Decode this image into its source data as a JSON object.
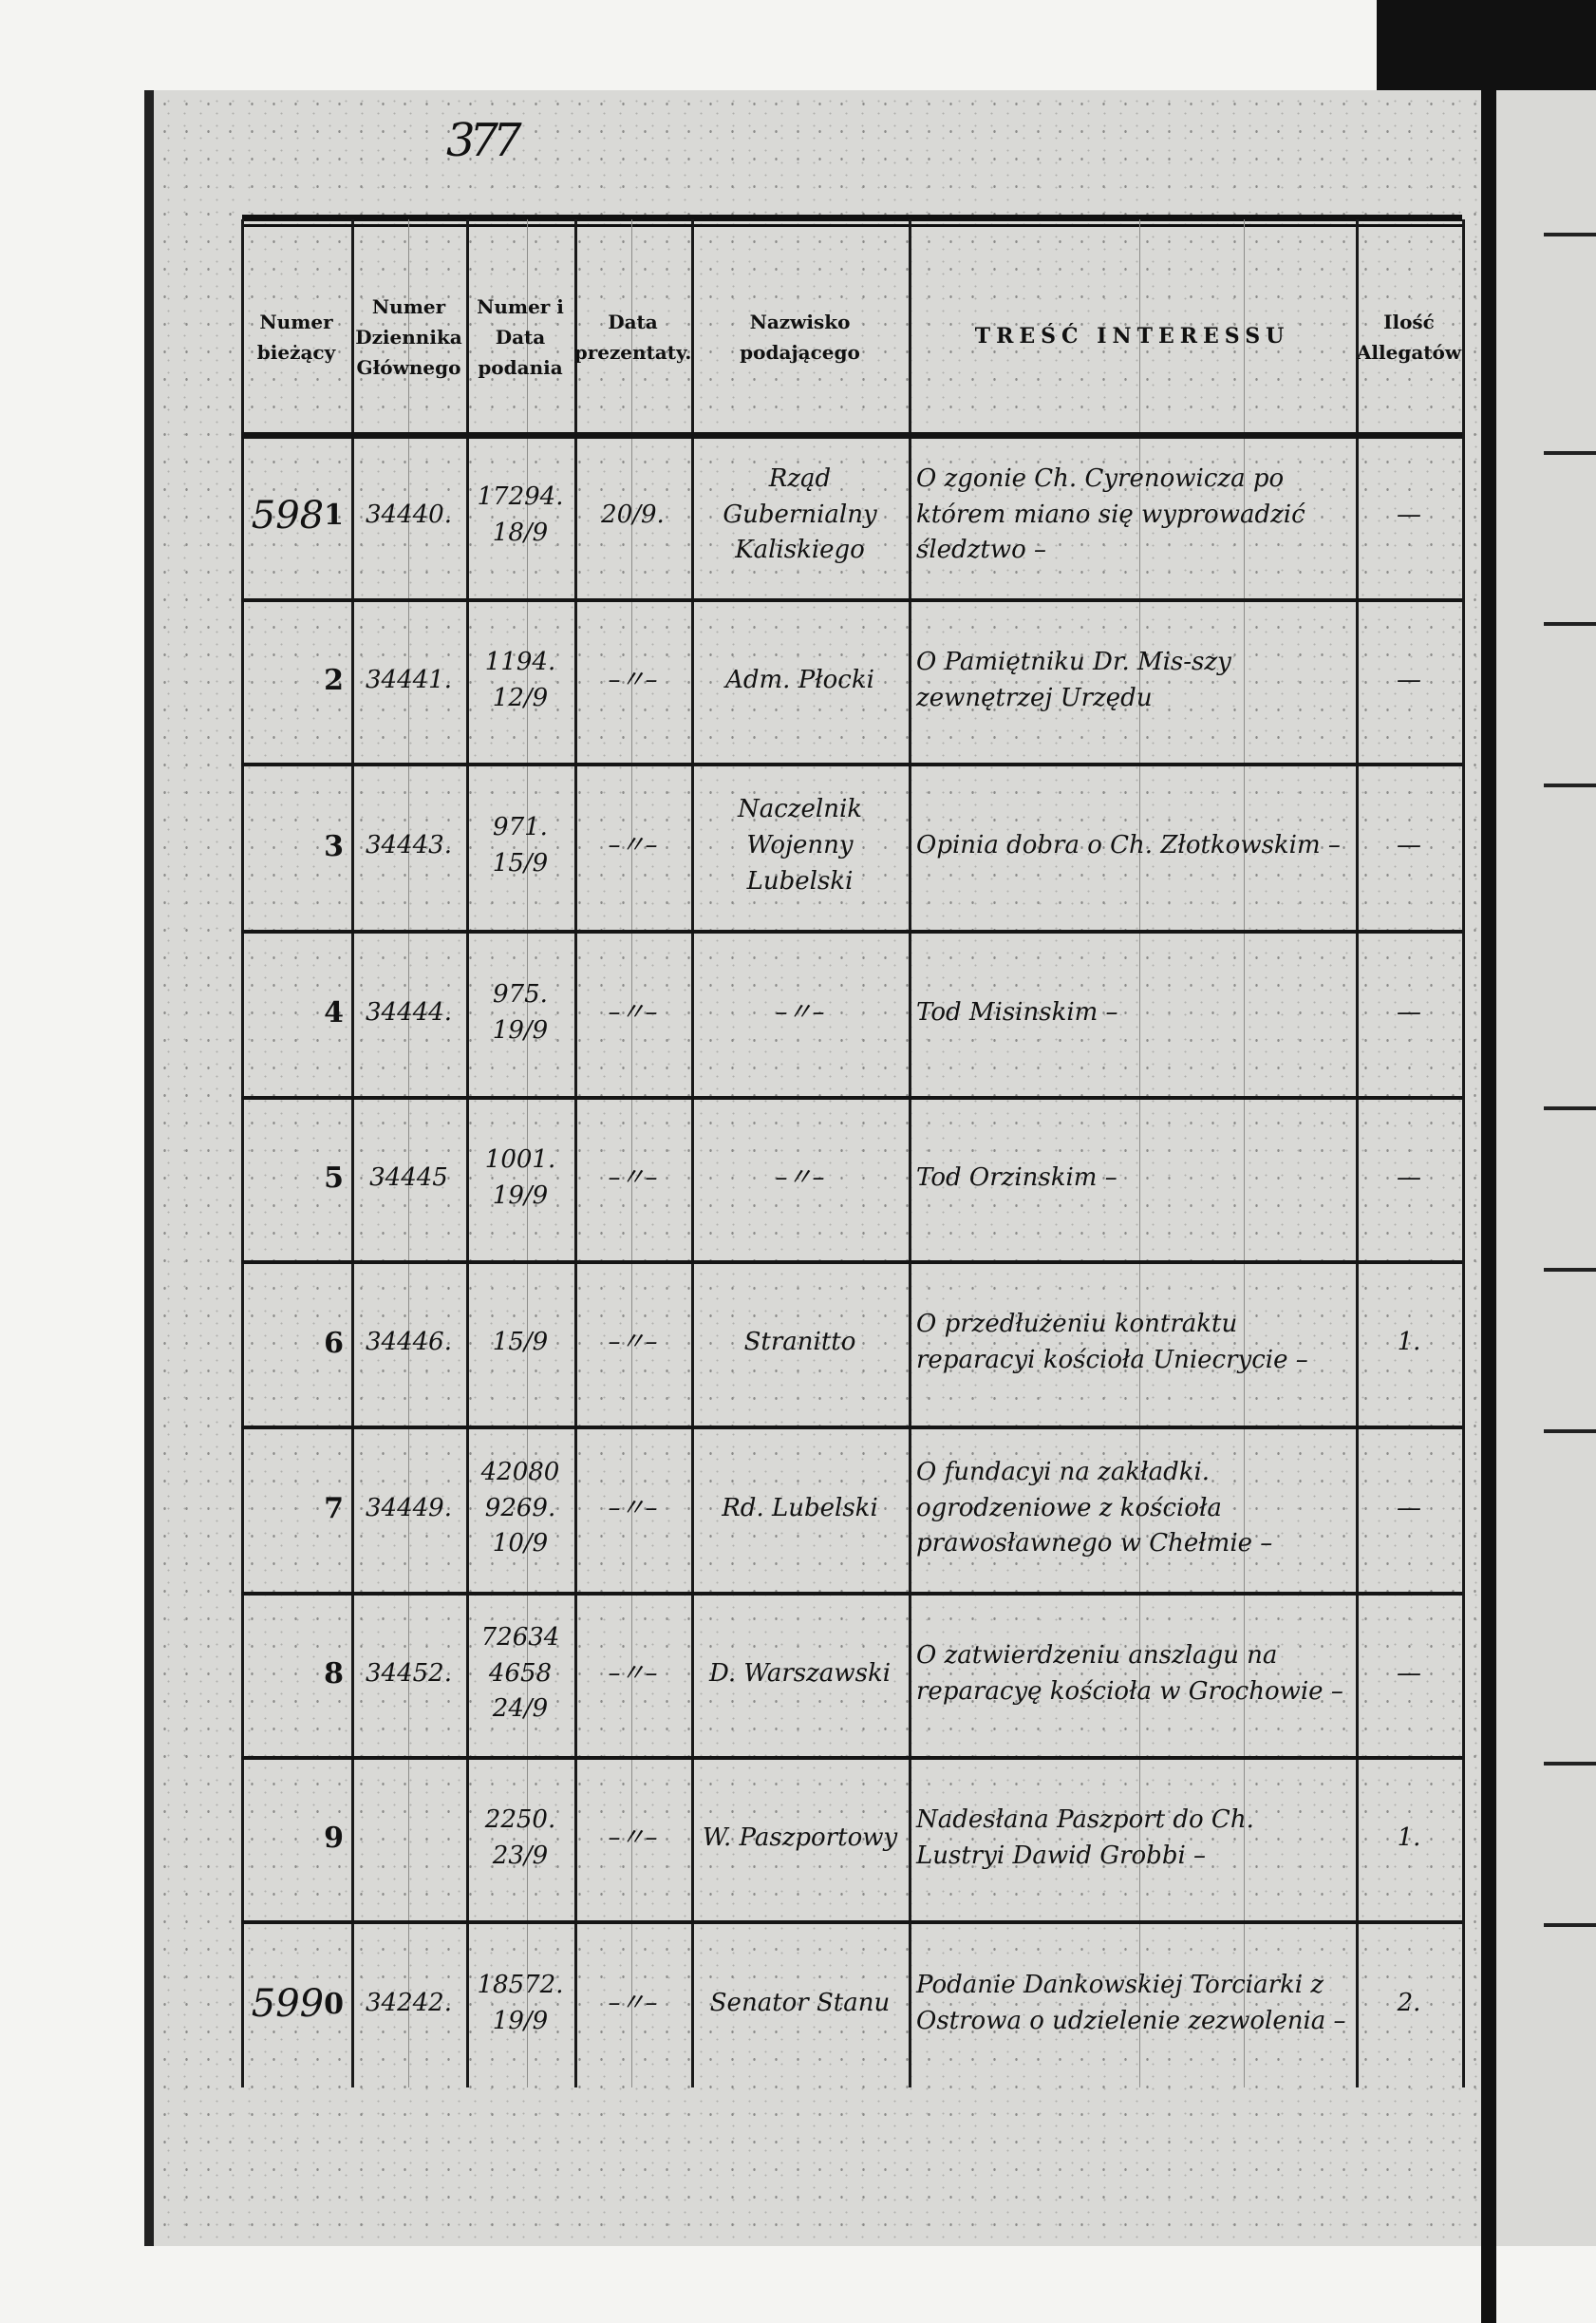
{
  "folio": "377",
  "headers": {
    "numer_biezacy": "Numer bieżący",
    "numer_dziennika": "Numer Dziennika Głównego",
    "numer_data": "Numer i Data podania",
    "data_prezentaty": "Data prezentaty.",
    "nazwisko": "Nazwisko podającego",
    "tresc": "TREŚĆ INTERESSU",
    "ilosc": "Ilość Allegatów"
  },
  "rows": [
    {
      "prefix": "598",
      "num": "1",
      "dziennik": "34440.",
      "numer_data": "17294. 18/9",
      "prezentata": "20/9.",
      "nazwisko": "Rząd Gubernialny Kaliskiego",
      "tresc": "O zgonie Ch. Cyrenowicza po którem miano się wyprowadzić śledztwo –",
      "ilosc": "—"
    },
    {
      "prefix": "",
      "num": "2",
      "dziennik": "34441.",
      "numer_data": "1194. 12/9",
      "prezentata": "–〃–",
      "nazwisko": "Adm. Płocki",
      "tresc": "O Pamiętniku Dr. Mis-szy zewnętrzej Urzędu",
      "ilosc": "—"
    },
    {
      "prefix": "",
      "num": "3",
      "dziennik": "34443.",
      "numer_data": "971. 15/9",
      "prezentata": "–〃–",
      "nazwisko": "Naczelnik Wojenny Lubelski",
      "tresc": "Opinia dobra o Ch. Złotkowskim –",
      "ilosc": "—"
    },
    {
      "prefix": "",
      "num": "4",
      "dziennik": "34444.",
      "numer_data": "975. 19/9",
      "prezentata": "–〃–",
      "nazwisko": "–〃–",
      "tresc": "Tod Misinskim –",
      "ilosc": "—"
    },
    {
      "prefix": "",
      "num": "5",
      "dziennik": "34445",
      "numer_data": "1001. 19/9",
      "prezentata": "–〃–",
      "nazwisko": "–〃–",
      "tresc": "Tod Orzinskim –",
      "ilosc": "—"
    },
    {
      "prefix": "",
      "num": "6",
      "dziennik": "34446.",
      "numer_data": "15/9",
      "prezentata": "–〃–",
      "nazwisko": "Stranitto",
      "tresc": "O przedłużeniu kontraktu reparacyi kościoła Uniecrycie –",
      "ilosc": "1."
    },
    {
      "prefix": "",
      "num": "7",
      "dziennik": "34449.",
      "numer_data": "42080 9269. 10/9",
      "prezentata": "–〃–",
      "nazwisko": "Rd. Lubelski",
      "tresc": "O fundacyi na zakładki. ogrodzeniowe z kościoła prawosławnego w Chełmie –",
      "ilosc": "—"
    },
    {
      "prefix": "",
      "num": "8",
      "dziennik": "34452.",
      "numer_data": "72634 4658 24/9",
      "prezentata": "–〃–",
      "nazwisko": "D. Warszawski",
      "tresc": "O zatwierdzeniu anszlagu na reparacyę kościoła w Grochowie –",
      "ilosc": "—"
    },
    {
      "prefix": "",
      "num": "9",
      "dziennik": "",
      "numer_data": "2250. 23/9",
      "prezentata": "–〃–",
      "nazwisko": "W. Paszportowy",
      "tresc": "Nadesłana Paszport do Ch. Lustryi Dawid Grobbi –",
      "ilosc": "1."
    },
    {
      "prefix": "599",
      "num": "0",
      "dziennik": "34242.",
      "numer_data": "18572. 19/9",
      "prezentata": "–〃–",
      "nazwisko": "Senator Stanu",
      "tresc": "Podanie Dankowskiej Torciarki z Ostrowa o udzielenie zezwolenia –",
      "ilosc": "2."
    }
  ]
}
